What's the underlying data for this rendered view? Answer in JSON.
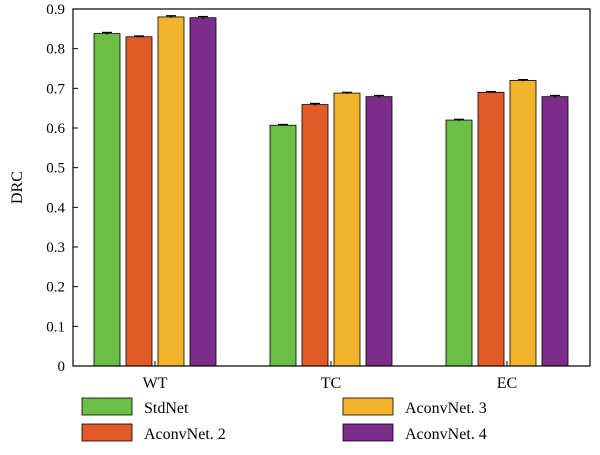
{
  "chart_data": {
    "type": "bar",
    "title": "",
    "xlabel": "",
    "ylabel": "DRC",
    "ylim": [
      0,
      0.9
    ],
    "yticks": [
      0,
      0.1,
      0.2,
      0.3,
      0.4,
      0.5,
      0.6,
      0.7,
      0.8,
      0.9
    ],
    "ytick_labels": [
      "0",
      "0.1",
      "0.2",
      "0.3",
      "0.4",
      "0.5",
      "0.6",
      "0.7",
      "0.8",
      "0.9"
    ],
    "grid": false,
    "legend_position": "bottom",
    "error_bars": true,
    "categories": [
      "WT",
      "TC",
      "EC"
    ],
    "series": [
      {
        "name": "StdNet",
        "color": "#6cbf45",
        "values": [
          0.838,
          0.607,
          0.62
        ],
        "errors": [
          0.003,
          0.002,
          0.002
        ]
      },
      {
        "name": "AconvNet. 2",
        "color": "#e25a28",
        "values": [
          0.83,
          0.659,
          0.69
        ],
        "errors": [
          0.002,
          0.003,
          0.002
        ]
      },
      {
        "name": "AconvNet. 3",
        "color": "#f2b42a",
        "values": [
          0.88,
          0.688,
          0.72
        ],
        "errors": [
          0.003,
          0.002,
          0.002
        ]
      },
      {
        "name": "AconvNet. 4",
        "color": "#7c2d8c",
        "values": [
          0.878,
          0.679,
          0.679
        ],
        "errors": [
          0.003,
          0.003,
          0.003
        ]
      }
    ]
  }
}
